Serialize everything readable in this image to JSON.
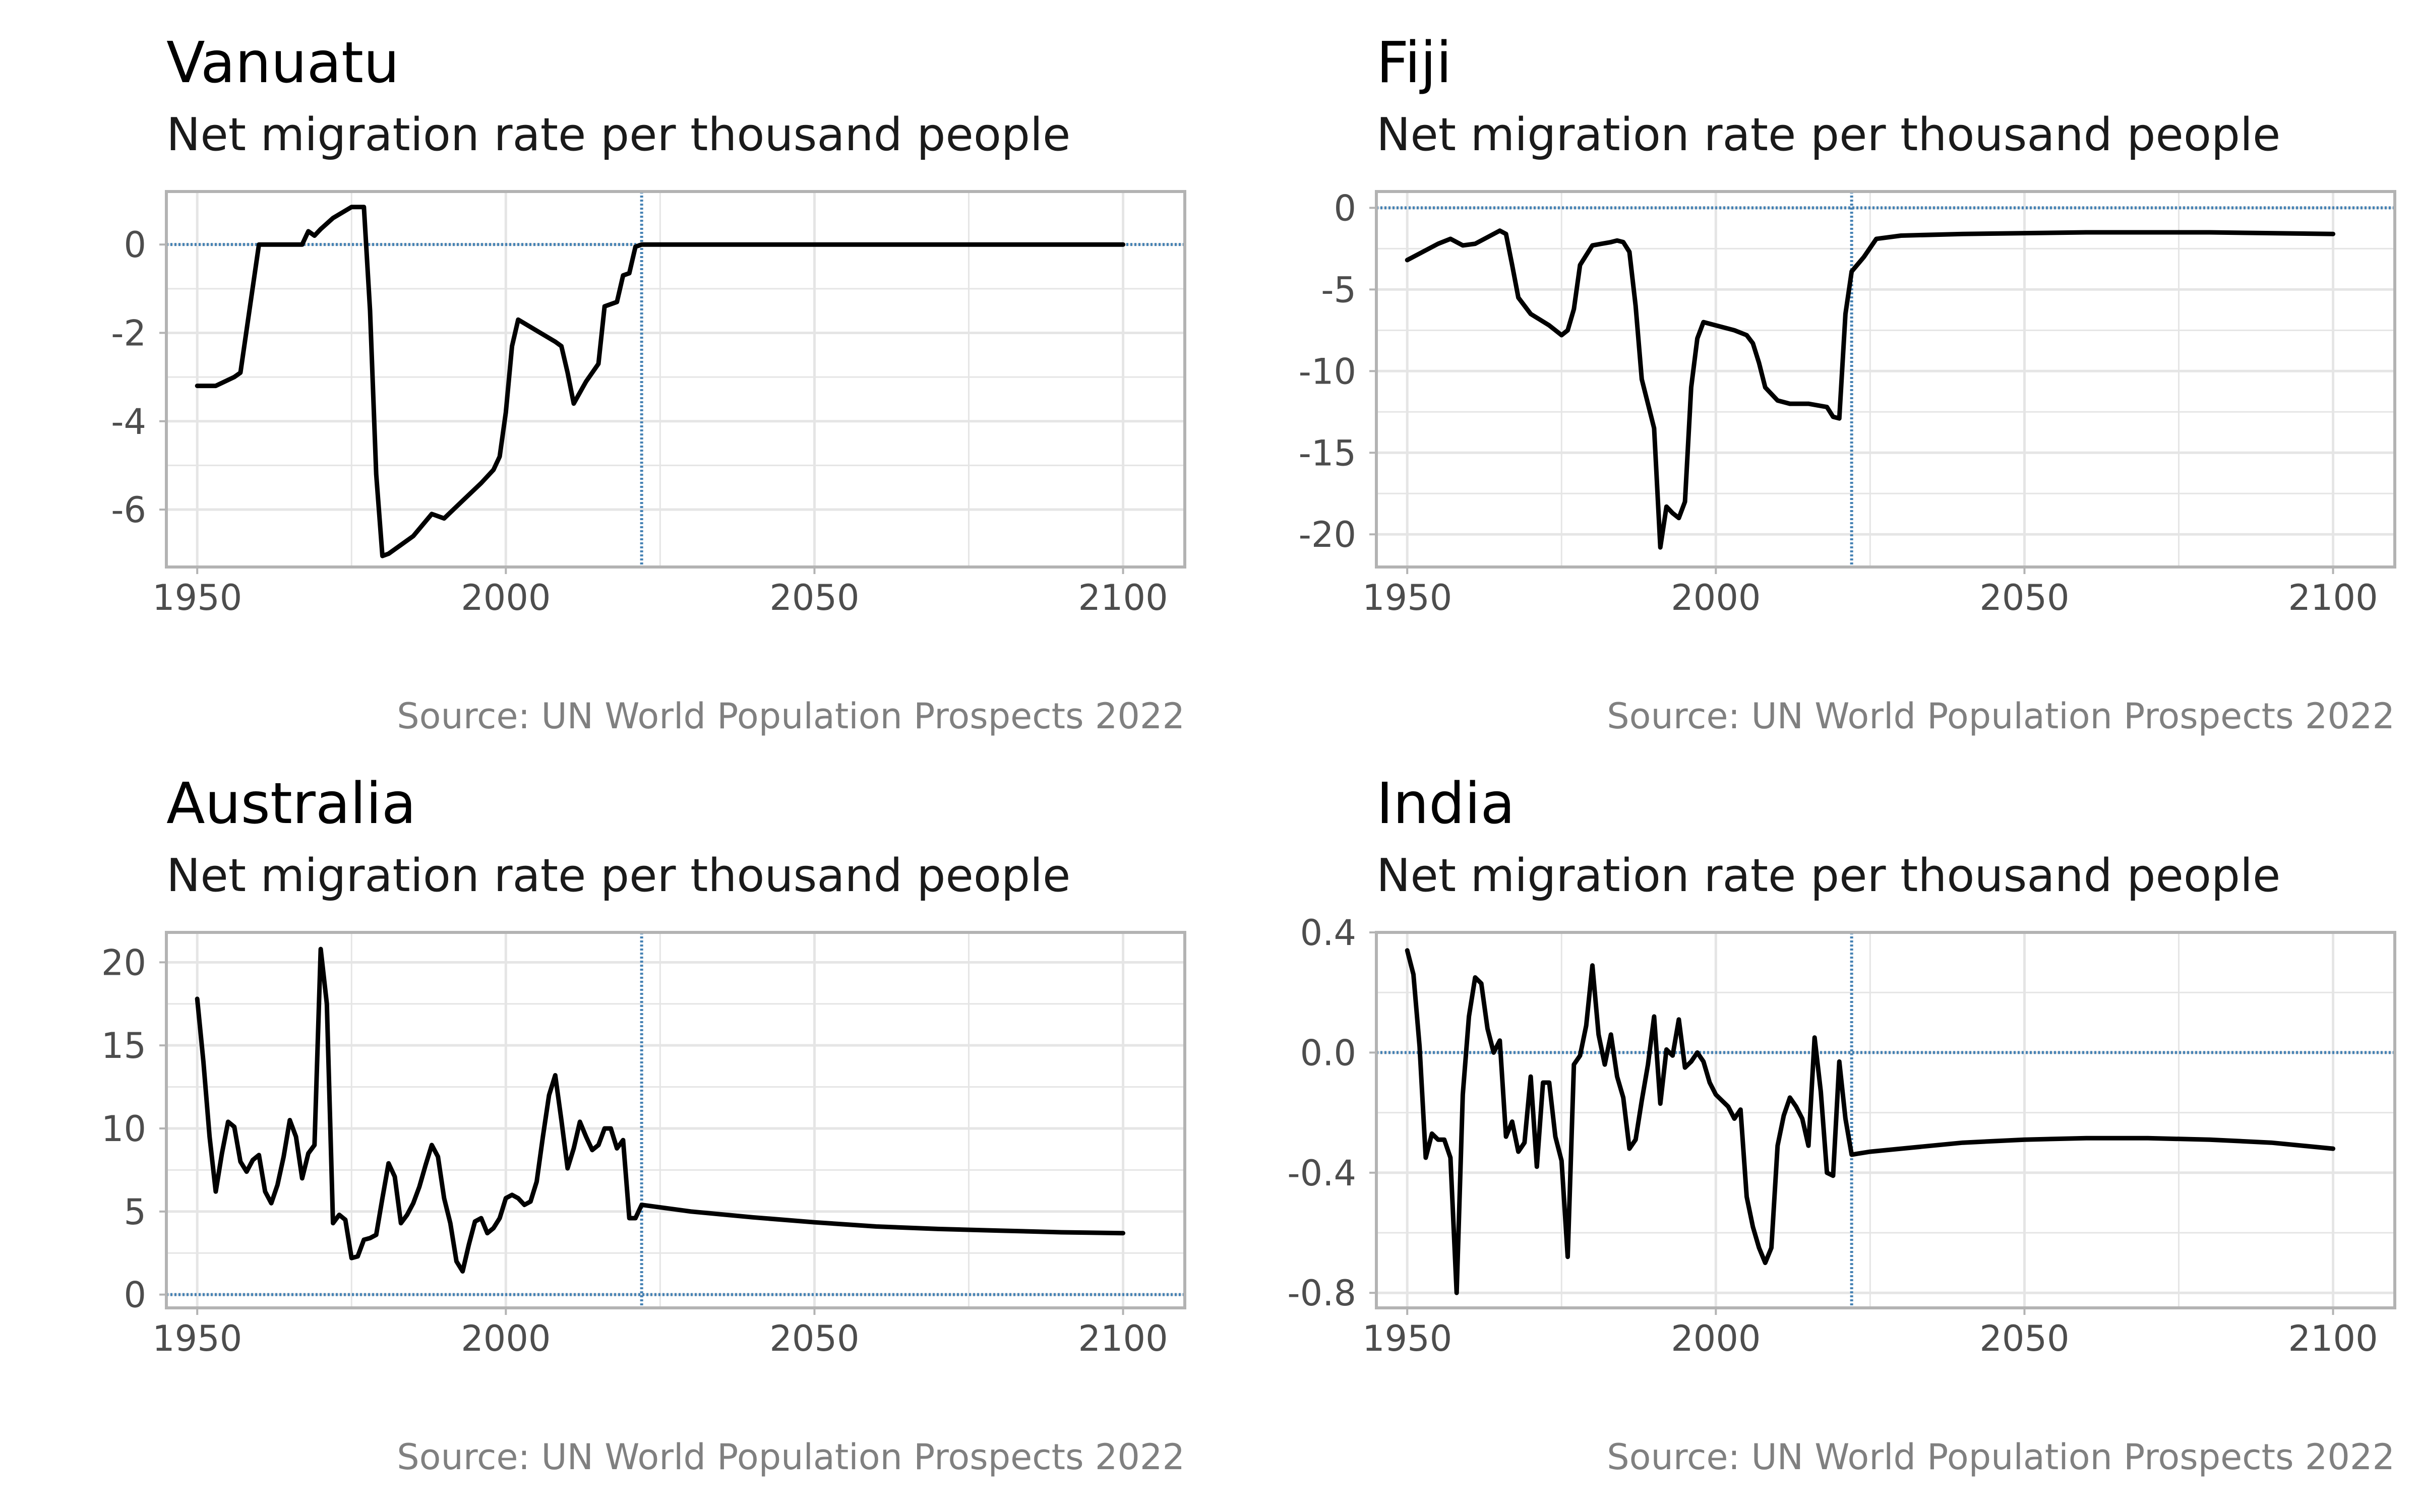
{
  "colors": {
    "line": "#000000",
    "refline": "#4682b4",
    "grid": "#e5e5e5",
    "frame": "#b3b3b3",
    "tick": "#4d4d4d",
    "source": "#808080"
  },
  "chart_data": [
    {
      "type": "line",
      "title": "Vanuatu",
      "subtitle": "Net migration rate per thousand people",
      "source": "Source: UN World Population Prospects 2022",
      "xlim": [
        1945,
        2110
      ],
      "ylim": [
        -7.3,
        1.2
      ],
      "xticks": [
        1950,
        2000,
        2050,
        2100
      ],
      "yticks": [
        -6,
        -4,
        -2,
        0
      ],
      "ytick_labels": [
        "-6",
        "-4",
        "-2",
        "0"
      ],
      "hline": 0,
      "vline": 2022,
      "grid": true,
      "series": [
        {
          "x": [
            1950,
            1953,
            1956,
            1957,
            1960,
            1965,
            1967,
            1968,
            1969,
            1970,
            1972,
            1975,
            1977,
            1978,
            1979,
            1980,
            1981,
            1983,
            1985,
            1988,
            1990,
            1993,
            1996,
            1998,
            1999,
            2000,
            2001,
            2002,
            2005,
            2008,
            2009,
            2010,
            2011,
            2013,
            2015,
            2016,
            2018,
            2019,
            2020,
            2021,
            2022,
            2030,
            2050,
            2075,
            2100
          ],
          "y": [
            -3.2,
            -3.2,
            -3.0,
            -2.9,
            0,
            0,
            0,
            0.3,
            0.2,
            0.35,
            0.6,
            0.85,
            0.85,
            -1.5,
            -5.2,
            -7.05,
            -7.0,
            -6.8,
            -6.6,
            -6.1,
            -6.2,
            -5.8,
            -5.4,
            -5.1,
            -4.8,
            -3.8,
            -2.3,
            -1.7,
            -1.95,
            -2.2,
            -2.3,
            -2.9,
            -3.6,
            -3.1,
            -2.7,
            -1.4,
            -1.3,
            -0.7,
            -0.65,
            -0.05,
            0,
            0,
            0,
            0,
            0
          ]
        }
      ]
    },
    {
      "type": "line",
      "title": "Fiji",
      "subtitle": "Net migration rate per thousand people",
      "source": "Source: UN World Population Prospects 2022",
      "xlim": [
        1945,
        2110
      ],
      "ylim": [
        -22,
        1
      ],
      "xticks": [
        1950,
        2000,
        2050,
        2100
      ],
      "yticks": [
        -20,
        -15,
        -10,
        -5,
        0
      ],
      "ytick_labels": [
        "-20",
        "-15",
        "-10",
        "-5",
        "0"
      ],
      "hline": 0,
      "vline": 2022,
      "grid": true,
      "series": [
        {
          "x": [
            1950,
            1955,
            1957,
            1959,
            1961,
            1963,
            1965,
            1966,
            1967,
            1968,
            1970,
            1973,
            1975,
            1976,
            1977,
            1978,
            1980,
            1983,
            1984,
            1985,
            1986,
            1987,
            1988,
            1990,
            1991,
            1992,
            1993,
            1994,
            1995,
            1996,
            1997,
            1998,
            2000,
            2003,
            2005,
            2006,
            2007,
            2008,
            2010,
            2012,
            2015,
            2018,
            2019,
            2020,
            2021,
            2022,
            2024,
            2026,
            2030,
            2040,
            2060,
            2080,
            2100
          ],
          "y": [
            -3.2,
            -2.2,
            -1.9,
            -2.3,
            -2.2,
            -1.8,
            -1.4,
            -1.6,
            -3.5,
            -5.5,
            -6.5,
            -7.2,
            -7.8,
            -7.5,
            -6.2,
            -3.5,
            -2.3,
            -2.1,
            -2.0,
            -2.1,
            -2.7,
            -6.0,
            -10.5,
            -13.5,
            -20.8,
            -18.3,
            -18.7,
            -19.0,
            -18.0,
            -11.0,
            -8.0,
            -7.0,
            -7.2,
            -7.5,
            -7.8,
            -8.3,
            -9.5,
            -11.0,
            -11.8,
            -12.0,
            -12.0,
            -12.2,
            -12.8,
            -12.9,
            -6.5,
            -3.9,
            -3.0,
            -1.9,
            -1.7,
            -1.6,
            -1.5,
            -1.5,
            -1.6
          ]
        }
      ]
    },
    {
      "type": "line",
      "title": "Australia",
      "subtitle": "Net migration rate per thousand people",
      "source": "Source: UN World Population Prospects 2022",
      "xlim": [
        1945,
        2110
      ],
      "ylim": [
        -0.8,
        21.8
      ],
      "xticks": [
        1950,
        2000,
        2050,
        2100
      ],
      "yticks": [
        0,
        5,
        10,
        15,
        20
      ],
      "ytick_labels": [
        "0",
        "5",
        "10",
        "15",
        "20"
      ],
      "hline": 0,
      "vline": 2022,
      "grid": true,
      "series": [
        {
          "x": [
            1950,
            1951,
            1952,
            1953,
            1954,
            1955,
            1956,
            1957,
            1958,
            1959,
            1960,
            1961,
            1962,
            1963,
            1964,
            1965,
            1966,
            1967,
            1968,
            1969,
            1970,
            1971,
            1972,
            1973,
            1974,
            1975,
            1976,
            1977,
            1978,
            1979,
            1980,
            1981,
            1982,
            1983,
            1984,
            1985,
            1986,
            1987,
            1988,
            1989,
            1990,
            1991,
            1992,
            1993,
            1994,
            1995,
            1996,
            1997,
            1998,
            1999,
            2000,
            2001,
            2002,
            2003,
            2004,
            2005,
            2006,
            2007,
            2008,
            2009,
            2010,
            2011,
            2012,
            2013,
            2014,
            2015,
            2016,
            2017,
            2018,
            2019,
            2020,
            2021,
            2022,
            2030,
            2040,
            2050,
            2060,
            2070,
            2080,
            2090,
            2100
          ],
          "y": [
            17.8,
            14.0,
            9.5,
            6.2,
            8.5,
            10.4,
            10.1,
            8.0,
            7.4,
            8.1,
            8.4,
            6.2,
            5.5,
            6.6,
            8.3,
            10.5,
            9.5,
            7.0,
            8.5,
            9.0,
            20.8,
            17.5,
            4.3,
            4.8,
            4.5,
            2.2,
            2.3,
            3.3,
            3.4,
            3.6,
            5.8,
            7.9,
            7.1,
            4.3,
            4.8,
            5.5,
            6.5,
            7.8,
            9.0,
            8.3,
            5.8,
            4.3,
            2.0,
            1.4,
            3.0,
            4.4,
            4.6,
            3.7,
            4.0,
            4.6,
            5.8,
            6.0,
            5.8,
            5.4,
            5.6,
            6.8,
            9.5,
            12.0,
            13.2,
            10.5,
            7.6,
            8.8,
            10.4,
            9.5,
            8.7,
            9.0,
            10.0,
            10.0,
            8.8,
            9.3,
            4.6,
            4.6,
            5.4,
            5.0,
            4.65,
            4.35,
            4.1,
            3.95,
            3.85,
            3.75,
            3.7
          ]
        }
      ]
    },
    {
      "type": "line",
      "title": "India",
      "subtitle": "Net migration rate per thousand people",
      "source": "Source: UN World Population Prospects 2022",
      "xlim": [
        1945,
        2110
      ],
      "ylim": [
        -0.85,
        0.4
      ],
      "xticks": [
        1950,
        2000,
        2050,
        2100
      ],
      "yticks": [
        -0.8,
        -0.4,
        0.0,
        0.4
      ],
      "ytick_labels": [
        "-0.8",
        "-0.4",
        "0.0",
        "0.4"
      ],
      "hline": 0,
      "vline": 2022,
      "grid": true,
      "series": [
        {
          "x": [
            1950,
            1951,
            1952,
            1953,
            1954,
            1955,
            1956,
            1957,
            1958,
            1959,
            1960,
            1961,
            1962,
            1963,
            1964,
            1965,
            1966,
            1967,
            1968,
            1969,
            1970,
            1971,
            1972,
            1973,
            1974,
            1975,
            1976,
            1977,
            1978,
            1979,
            1980,
            1981,
            1982,
            1983,
            1984,
            1985,
            1986,
            1987,
            1988,
            1989,
            1990,
            1991,
            1992,
            1993,
            1994,
            1995,
            1996,
            1997,
            1998,
            1999,
            2000,
            2001,
            2002,
            2003,
            2004,
            2005,
            2006,
            2007,
            2008,
            2009,
            2010,
            2011,
            2012,
            2013,
            2014,
            2015,
            2016,
            2017,
            2018,
            2019,
            2020,
            2021,
            2022,
            2025,
            2030,
            2040,
            2050,
            2060,
            2070,
            2080,
            2090,
            2100
          ],
          "y": [
            0.34,
            0.26,
            0.02,
            -0.35,
            -0.27,
            -0.29,
            -0.29,
            -0.35,
            -0.8,
            -0.14,
            0.12,
            0.25,
            0.23,
            0.08,
            0.0,
            0.04,
            -0.28,
            -0.23,
            -0.33,
            -0.3,
            -0.08,
            -0.38,
            -0.1,
            -0.1,
            -0.28,
            -0.36,
            -0.68,
            -0.04,
            -0.01,
            0.09,
            0.29,
            0.06,
            -0.04,
            0.06,
            -0.08,
            -0.15,
            -0.32,
            -0.29,
            -0.16,
            -0.04,
            0.12,
            -0.17,
            0.01,
            -0.01,
            0.11,
            -0.05,
            -0.03,
            0.0,
            -0.03,
            -0.1,
            -0.14,
            -0.16,
            -0.18,
            -0.22,
            -0.19,
            -0.48,
            -0.58,
            -0.65,
            -0.7,
            -0.65,
            -0.31,
            -0.21,
            -0.15,
            -0.18,
            -0.22,
            -0.31,
            0.05,
            -0.13,
            -0.4,
            -0.41,
            -0.03,
            -0.22,
            -0.34,
            -0.33,
            -0.32,
            -0.3,
            -0.29,
            -0.285,
            -0.285,
            -0.29,
            -0.3,
            -0.32
          ]
        }
      ]
    }
  ]
}
